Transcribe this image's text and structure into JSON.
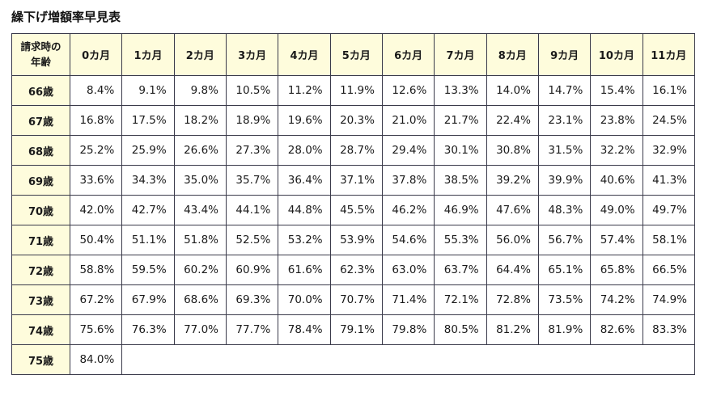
{
  "title": "繰下げ増額率早見表",
  "colors": {
    "header_bg": "#fefcdc",
    "border": "#3a3a4a",
    "cell_bg": "#ffffff",
    "text": "#1a1a1a"
  },
  "table": {
    "corner_header": "請求時の\n年齢",
    "column_headers": [
      "0カ月",
      "1カ月",
      "2カ月",
      "3カ月",
      "4カ月",
      "5カ月",
      "6カ月",
      "7カ月",
      "8カ月",
      "9カ月",
      "10カ月",
      "11カ月"
    ],
    "rows": [
      {
        "age": "66歳",
        "values": [
          "8.4%",
          "9.1%",
          "9.8%",
          "10.5%",
          "11.2%",
          "11.9%",
          "12.6%",
          "13.3%",
          "14.0%",
          "14.7%",
          "15.4%",
          "16.1%"
        ]
      },
      {
        "age": "67歳",
        "values": [
          "16.8%",
          "17.5%",
          "18.2%",
          "18.9%",
          "19.6%",
          "20.3%",
          "21.0%",
          "21.7%",
          "22.4%",
          "23.1%",
          "23.8%",
          "24.5%"
        ]
      },
      {
        "age": "68歳",
        "values": [
          "25.2%",
          "25.9%",
          "26.6%",
          "27.3%",
          "28.0%",
          "28.7%",
          "29.4%",
          "30.1%",
          "30.8%",
          "31.5%",
          "32.2%",
          "32.9%"
        ]
      },
      {
        "age": "69歳",
        "values": [
          "33.6%",
          "34.3%",
          "35.0%",
          "35.7%",
          "36.4%",
          "37.1%",
          "37.8%",
          "38.5%",
          "39.2%",
          "39.9%",
          "40.6%",
          "41.3%"
        ]
      },
      {
        "age": "70歳",
        "values": [
          "42.0%",
          "42.7%",
          "43.4%",
          "44.1%",
          "44.8%",
          "45.5%",
          "46.2%",
          "46.9%",
          "47.6%",
          "48.3%",
          "49.0%",
          "49.7%"
        ]
      },
      {
        "age": "71歳",
        "values": [
          "50.4%",
          "51.1%",
          "51.8%",
          "52.5%",
          "53.2%",
          "53.9%",
          "54.6%",
          "55.3%",
          "56.0%",
          "56.7%",
          "57.4%",
          "58.1%"
        ]
      },
      {
        "age": "72歳",
        "values": [
          "58.8%",
          "59.5%",
          "60.2%",
          "60.9%",
          "61.6%",
          "62.3%",
          "63.0%",
          "63.7%",
          "64.4%",
          "65.1%",
          "65.8%",
          "66.5%"
        ]
      },
      {
        "age": "73歳",
        "values": [
          "67.2%",
          "67.9%",
          "68.6%",
          "69.3%",
          "70.0%",
          "70.7%",
          "71.4%",
          "72.1%",
          "72.8%",
          "73.5%",
          "74.2%",
          "74.9%"
        ]
      },
      {
        "age": "74歳",
        "values": [
          "75.6%",
          "76.3%",
          "77.0%",
          "77.7%",
          "78.4%",
          "79.1%",
          "79.8%",
          "80.5%",
          "81.2%",
          "81.9%",
          "82.6%",
          "83.3%"
        ]
      },
      {
        "age": "75歳",
        "values": [
          "84.0%"
        ]
      }
    ]
  }
}
